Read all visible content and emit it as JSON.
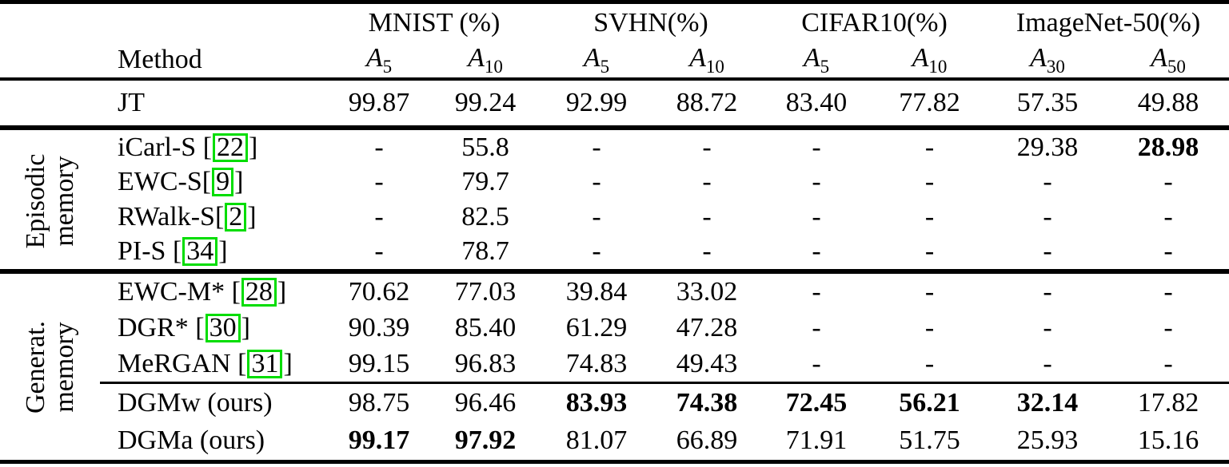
{
  "header": {
    "method_label": "Method",
    "column_groups": [
      {
        "key": "mnist",
        "label": "MNIST (%)",
        "subcols": [
          {
            "sym": "A",
            "sub": "5"
          },
          {
            "sym": "A",
            "sub": "10"
          }
        ]
      },
      {
        "key": "svhn",
        "label": "SVHN(%)",
        "subcols": [
          {
            "sym": "A",
            "sub": "5"
          },
          {
            "sym": "A",
            "sub": "10"
          }
        ]
      },
      {
        "key": "cifar10",
        "label": "CIFAR10(%)",
        "subcols": [
          {
            "sym": "A",
            "sub": "5"
          },
          {
            "sym": "A",
            "sub": "10"
          }
        ]
      },
      {
        "key": "imagenet-50",
        "label": "ImageNet-50(%)",
        "subcols": [
          {
            "sym": "A",
            "sub": "30"
          },
          {
            "sym": "A",
            "sub": "50"
          }
        ]
      }
    ]
  },
  "body": {
    "jt_row": {
      "method": {
        "prefix": "JT"
      },
      "values": [
        {
          "v": "99.87",
          "b": false
        },
        {
          "v": "99.24",
          "b": false
        },
        {
          "v": "92.99",
          "b": false
        },
        {
          "v": "88.72",
          "b": false
        },
        {
          "v": "83.40",
          "b": false
        },
        {
          "v": "77.82",
          "b": false
        },
        {
          "v": "57.35",
          "b": false
        },
        {
          "v": "49.88",
          "b": false
        }
      ]
    },
    "episodic": {
      "group_label_lines": [
        "Episodic",
        "memory"
      ],
      "rows": [
        {
          "method": {
            "prefix": "iCarl-S [",
            "cite": "22",
            "suffix": "]"
          },
          "values": [
            {
              "v": "-",
              "b": false
            },
            {
              "v": "55.8",
              "b": false
            },
            {
              "v": "-",
              "b": false
            },
            {
              "v": "-",
              "b": false
            },
            {
              "v": "-",
              "b": false
            },
            {
              "v": "-",
              "b": false
            },
            {
              "v": "29.38",
              "b": false
            },
            {
              "v": "28.98",
              "b": true
            }
          ]
        },
        {
          "method": {
            "prefix": "EWC-S[",
            "cite": "9",
            "suffix": "]"
          },
          "values": [
            {
              "v": "-",
              "b": false
            },
            {
              "v": "79.7",
              "b": false
            },
            {
              "v": "-",
              "b": false
            },
            {
              "v": "-",
              "b": false
            },
            {
              "v": "-",
              "b": false
            },
            {
              "v": "-",
              "b": false
            },
            {
              "v": "-",
              "b": false
            },
            {
              "v": "-",
              "b": false
            }
          ]
        },
        {
          "method": {
            "prefix": "RWalk-S[",
            "cite": "2",
            "suffix": "]"
          },
          "values": [
            {
              "v": "-",
              "b": false
            },
            {
              "v": "82.5",
              "b": false
            },
            {
              "v": "-",
              "b": false
            },
            {
              "v": "-",
              "b": false
            },
            {
              "v": "-",
              "b": false
            },
            {
              "v": "-",
              "b": false
            },
            {
              "v": "-",
              "b": false
            },
            {
              "v": "-",
              "b": false
            }
          ]
        },
        {
          "method": {
            "prefix": "PI-S [",
            "cite": "34",
            "suffix": "]"
          },
          "values": [
            {
              "v": "-",
              "b": false
            },
            {
              "v": "78.7",
              "b": false
            },
            {
              "v": "-",
              "b": false
            },
            {
              "v": "-",
              "b": false
            },
            {
              "v": "-",
              "b": false
            },
            {
              "v": "-",
              "b": false
            },
            {
              "v": "-",
              "b": false
            },
            {
              "v": "-",
              "b": false
            }
          ]
        }
      ]
    },
    "generative": {
      "group_label_lines": [
        "Generat.",
        "memory"
      ],
      "memory_rows": [
        {
          "method": {
            "prefix": "EWC-M* [",
            "cite": "28",
            "suffix": "]"
          },
          "values": [
            {
              "v": "70.62",
              "b": false
            },
            {
              "v": "77.03",
              "b": false
            },
            {
              "v": "39.84",
              "b": false
            },
            {
              "v": "33.02",
              "b": false
            },
            {
              "v": "-",
              "b": false
            },
            {
              "v": "-",
              "b": false
            },
            {
              "v": "-",
              "b": false
            },
            {
              "v": "-",
              "b": false
            }
          ]
        },
        {
          "method": {
            "prefix": "DGR* [",
            "cite": "30",
            "suffix": "]"
          },
          "values": [
            {
              "v": "90.39",
              "b": false
            },
            {
              "v": "85.40",
              "b": false
            },
            {
              "v": "61.29",
              "b": false
            },
            {
              "v": "47.28",
              "b": false
            },
            {
              "v": "-",
              "b": false
            },
            {
              "v": "-",
              "b": false
            },
            {
              "v": "-",
              "b": false
            },
            {
              "v": "-",
              "b": false
            }
          ]
        },
        {
          "method": {
            "prefix": "MeRGAN [",
            "cite": "31",
            "suffix": "]"
          },
          "values": [
            {
              "v": "99.15",
              "b": false
            },
            {
              "v": "96.83",
              "b": false
            },
            {
              "v": "74.83",
              "b": false
            },
            {
              "v": "49.43",
              "b": false
            },
            {
              "v": "-",
              "b": false
            },
            {
              "v": "-",
              "b": false
            },
            {
              "v": "-",
              "b": false
            },
            {
              "v": "-",
              "b": false
            }
          ]
        }
      ],
      "ours_rows": [
        {
          "method": {
            "prefix": "DGMw (ours)"
          },
          "values": [
            {
              "v": "98.75",
              "b": false
            },
            {
              "v": "96.46",
              "b": false
            },
            {
              "v": "83.93",
              "b": true
            },
            {
              "v": "74.38",
              "b": true
            },
            {
              "v": "72.45",
              "b": true
            },
            {
              "v": "56.21",
              "b": true
            },
            {
              "v": "32.14",
              "b": true
            },
            {
              "v": "17.82",
              "b": false
            }
          ]
        },
        {
          "method": {
            "prefix": "DGMa (ours)"
          },
          "values": [
            {
              "v": "99.17",
              "b": true
            },
            {
              "v": "97.92",
              "b": true
            },
            {
              "v": "81.07",
              "b": false
            },
            {
              "v": "66.89",
              "b": false
            },
            {
              "v": "71.91",
              "b": false
            },
            {
              "v": "51.75",
              "b": false
            },
            {
              "v": "25.93",
              "b": false
            },
            {
              "v": "15.16",
              "b": false
            }
          ]
        }
      ]
    }
  },
  "colors": {
    "citation_box_green": "#00dd00",
    "rule_black": "#000000",
    "text_black": "#000000",
    "background_white": "#ffffff"
  }
}
